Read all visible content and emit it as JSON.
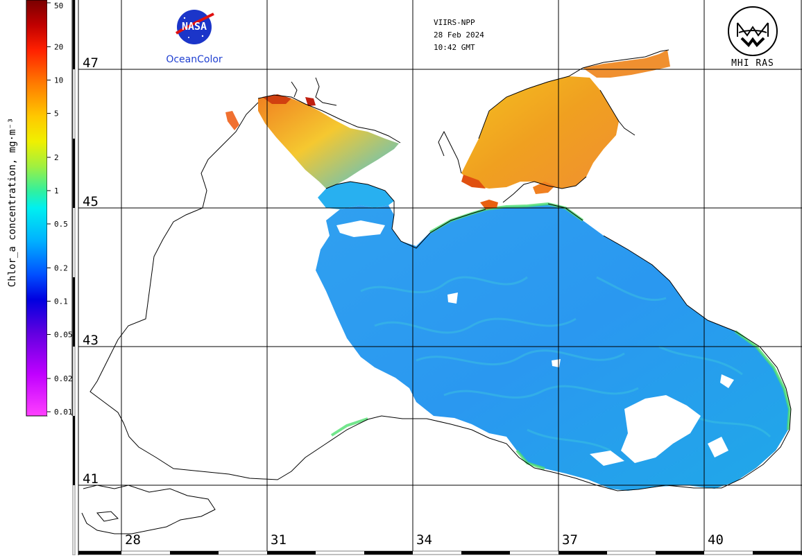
{
  "header": {
    "sensor": "VIIRS-NPP",
    "date": "28 Feb 2024",
    "time": "10:42 GMT"
  },
  "logos": {
    "nasa_text": "NASA",
    "nasa_caption": "OceanColor",
    "mhi_caption": "MHI RAS"
  },
  "colorbar": {
    "title": "Chlor_a concentration, mg·m⁻³",
    "tick_labels": [
      "50",
      "20",
      "10",
      "5",
      "2",
      "1",
      "0.5",
      "0.2",
      "0.1",
      "0.05",
      "0.02",
      "0.01"
    ],
    "scale": "log",
    "range": [
      0.01,
      50
    ]
  },
  "map": {
    "latitude_labels": [
      "47",
      "45",
      "43",
      "41"
    ],
    "longitude_labels": [
      "28",
      "31",
      "34",
      "37",
      "40"
    ],
    "grid": true,
    "land_color": "#ffffff",
    "coast_color": "#000000"
  }
}
